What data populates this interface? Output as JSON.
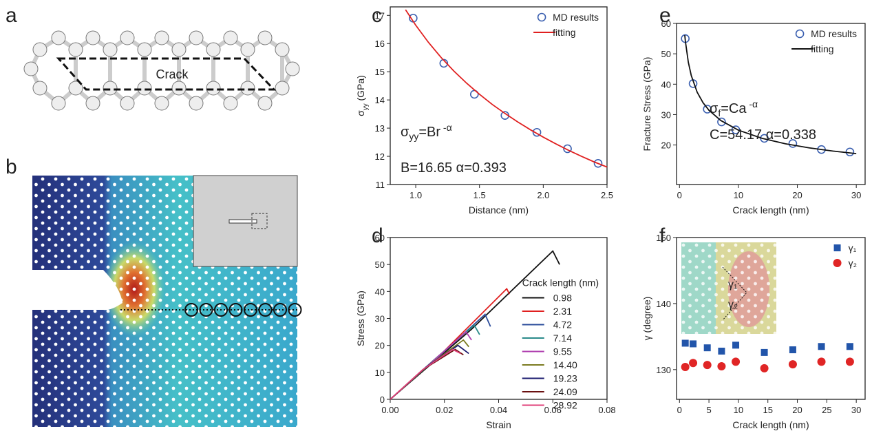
{
  "figure": {
    "panel_a": {
      "label": "a",
      "annotation": "Crack"
    },
    "panel_b": {
      "label": "b"
    }
  },
  "chart_data": [
    {
      "panel": "c",
      "type": "scatter",
      "xlabel": "Distance (nm)",
      "ylabel": [
        {
          "text": "σ"
        },
        {
          "text": "yy",
          "sub": true
        },
        {
          "text": "  (GPa)"
        }
      ],
      "xlim": [
        0.8,
        2.5
      ],
      "xticks": [
        {
          "value": 1,
          "label": "1.0"
        },
        1.5,
        {
          "value": 2,
          "label": "2.0"
        },
        2.5
      ],
      "ylim": [
        11,
        17.3
      ],
      "yticks": [
        11,
        12,
        13,
        14,
        15,
        16,
        17
      ],
      "legend": "upper right",
      "annotations": [
        {
          "parts": [
            {
              "text": "σ"
            },
            {
              "text": "yy",
              "sub": true
            },
            {
              "text": "=Br"
            },
            {
              "text": " -α",
              "sup": true
            }
          ]
        },
        {
          "parts": [
            {
              "text": "B=16.65  α=0.393"
            }
          ]
        }
      ],
      "series": [
        {
          "name": "MD results",
          "color": "#3a5fb0",
          "marker": "circle",
          "filled": false,
          "x": [
            0.98,
            1.22,
            1.46,
            1.7,
            1.95,
            2.19,
            2.43
          ],
          "values": [
            16.9,
            15.3,
            14.2,
            13.45,
            12.85,
            12.27,
            11.75
          ]
        },
        {
          "name": "fitting",
          "color": "#e02020",
          "line": true,
          "x": [
            0.92,
            1.0,
            1.1,
            1.2,
            1.3,
            1.4,
            1.5,
            1.6,
            1.7,
            1.8,
            1.9,
            2.0,
            2.1,
            2.2,
            2.3,
            2.4,
            2.5
          ],
          "values": [
            17.2,
            16.65,
            16.04,
            15.5,
            15.02,
            14.59,
            14.2,
            13.84,
            13.52,
            13.22,
            12.94,
            12.68,
            12.44,
            12.21,
            12.0,
            11.8,
            11.62
          ]
        }
      ]
    },
    {
      "panel": "d",
      "type": "line",
      "xlabel": "Strain",
      "ylabel": [
        {
          "text": "Stress (GPa)"
        }
      ],
      "xlim": [
        0,
        0.08
      ],
      "xticks": [
        {
          "value": 0,
          "label": "0.00"
        },
        {
          "value": 0.02,
          "label": "0.02"
        },
        {
          "value": 0.04,
          "label": "0.04"
        },
        {
          "value": 0.06,
          "label": "0.06"
        },
        {
          "value": 0.08,
          "label": "0.08"
        }
      ],
      "ylim": [
        0,
        60
      ],
      "yticks": [
        0,
        10,
        20,
        30,
        40,
        50,
        60
      ],
      "legend": "right",
      "legend_title": "Crack length (nm)",
      "series": [
        {
          "name": "0.98",
          "color": "#111111",
          "line": true,
          "x": [
            0,
            0.03,
            0.06,
            0.0625
          ],
          "values": [
            0,
            26,
            55,
            50
          ]
        },
        {
          "name": "2.31",
          "color": "#e02020",
          "line": true,
          "x": [
            0,
            0.02,
            0.043,
            0.044
          ],
          "values": [
            0,
            18,
            41,
            39
          ]
        },
        {
          "name": "4.72",
          "color": "#2b4c9b",
          "line": true,
          "x": [
            0,
            0.018,
            0.035,
            0.037
          ],
          "values": [
            0,
            16,
            31.5,
            27
          ]
        },
        {
          "name": "7.14",
          "color": "#2a8a8a",
          "line": true,
          "x": [
            0,
            0.016,
            0.031,
            0.033
          ],
          "values": [
            0,
            14.5,
            27.5,
            24
          ]
        },
        {
          "name": "9.55",
          "color": "#b040b0",
          "line": true,
          "x": [
            0,
            0.015,
            0.028,
            0.03
          ],
          "values": [
            0,
            13.5,
            25,
            22
          ]
        },
        {
          "name": "14.40",
          "color": "#7a7a20",
          "line": true,
          "x": [
            0,
            0.014,
            0.027,
            0.029
          ],
          "values": [
            0,
            12.5,
            22,
            19.5
          ]
        },
        {
          "name": "19.23",
          "color": "#1a1a6e",
          "line": true,
          "x": [
            0,
            0.013,
            0.025,
            0.029
          ],
          "values": [
            0,
            11.8,
            20,
            17
          ]
        },
        {
          "name": "24.09",
          "color": "#6a1010",
          "line": true,
          "x": [
            0,
            0.012,
            0.024,
            0.027
          ],
          "values": [
            0,
            11,
            18.5,
            16.5
          ]
        },
        {
          "name": "28.92",
          "color": "#e0407a",
          "line": true,
          "x": [
            0,
            0.012,
            0.023,
            0.026
          ],
          "values": [
            0,
            11,
            18.5,
            17
          ]
        }
      ]
    },
    {
      "panel": "e",
      "type": "scatter",
      "xlabel": "Crack length (nm)",
      "ylabel": [
        {
          "text": "Fracture Stress (GPa)"
        }
      ],
      "xlim": [
        -0.5,
        31.5
      ],
      "xticks": [
        0,
        10,
        20,
        30
      ],
      "ylim": [
        7,
        60
      ],
      "yticks": [
        20,
        30,
        40,
        50,
        60
      ],
      "legend": "upper right",
      "annotations": [
        {
          "parts": [
            {
              "text": "σ"
            },
            {
              "text": "f",
              "sub": true
            },
            {
              "text": "=Ca"
            },
            {
              "text": " -α",
              "sup": true
            }
          ]
        },
        {
          "parts": [
            {
              "text": "C=54.17  α=0.338"
            }
          ]
        }
      ],
      "series": [
        {
          "name": "MD results",
          "color": "#3a5fb0",
          "marker": "circle",
          "filled": false,
          "x": [
            0.98,
            2.31,
            4.72,
            7.14,
            9.55,
            14.4,
            19.23,
            24.09,
            28.92
          ],
          "values": [
            55,
            40.2,
            31.8,
            27.6,
            25,
            22.2,
            20.5,
            18.5,
            17.7
          ]
        },
        {
          "name": "fitting",
          "color": "#111111",
          "line": true,
          "x": [
            0.9,
            1,
            1.5,
            2,
            3,
            4,
            5,
            7,
            10,
            14,
            18,
            22,
            26,
            30
          ],
          "values": [
            56.14,
            54.17,
            47.23,
            42.85,
            37.37,
            33.9,
            31.44,
            28.07,
            24.88,
            22.2,
            20.4,
            19.06,
            18.01,
            17.16
          ]
        }
      ]
    },
    {
      "panel": "f",
      "type": "scatter",
      "xlabel": "Crack length (nm)",
      "ylabel": [
        {
          "text": "γ (degree)"
        }
      ],
      "xlim": [
        -0.5,
        31.5
      ],
      "xticks": [
        0,
        5,
        10,
        15,
        20,
        25,
        30
      ],
      "ylim": [
        125.5,
        150
      ],
      "yticks": [
        130,
        140,
        150
      ],
      "legend": "upper right",
      "series": [
        {
          "name": "γ₁",
          "color": "#2255aa",
          "marker": "square",
          "filled": true,
          "x": [
            0.98,
            2.31,
            4.72,
            7.14,
            9.55,
            14.4,
            19.23,
            24.09,
            28.92
          ],
          "values": [
            134,
            133.9,
            133.3,
            132.8,
            133.7,
            132.6,
            133,
            133.5,
            133.5
          ]
        },
        {
          "name": "γ₂",
          "color": "#e02525",
          "marker": "circle",
          "filled": true,
          "x": [
            0.98,
            2.31,
            4.72,
            7.14,
            9.55,
            14.4,
            19.23,
            24.09,
            28.92
          ],
          "values": [
            130.4,
            131,
            130.7,
            130.5,
            131.2,
            130.2,
            130.8,
            131.2,
            131.2
          ]
        }
      ]
    }
  ]
}
